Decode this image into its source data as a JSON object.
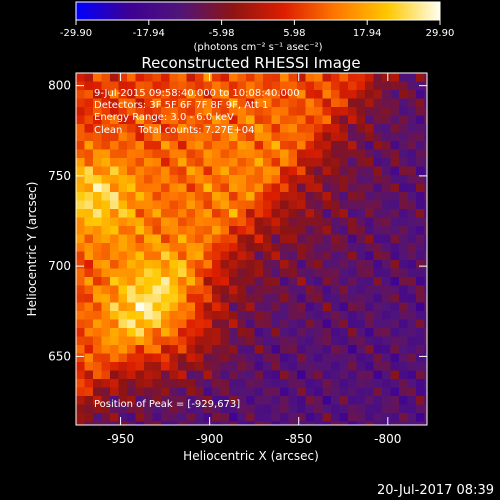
{
  "chart_data": {
    "type": "heatmap",
    "title": "Reconstructed RHESSI Image",
    "xlabel": "Heliocentric X (arcsec)",
    "ylabel": "Heliocentric Y (arcsec)",
    "xlim": [
      -975,
      -778
    ],
    "ylim": [
      612,
      807
    ],
    "xticks": [
      -950,
      -900,
      -850,
      -800
    ],
    "yticks": [
      650,
      700,
      750,
      800
    ],
    "colorbar": {
      "label": "(photons cm⁻² s⁻¹ asec⁻²)",
      "ticks": [
        -29.9,
        -17.94,
        -5.98,
        5.98,
        17.94,
        29.9
      ],
      "tick_labels": [
        "-29.90",
        "-17.94",
        "-5.98",
        "5.98",
        "17.94",
        "29.90"
      ],
      "range": [
        -29.9,
        29.9
      ],
      "colors": [
        "#0000ff",
        "#3c0096",
        "#50147a",
        "#8c1414",
        "#dc1e00",
        "#ff7800",
        "#ffc800",
        "#fffff0"
      ]
    },
    "annotations": [
      "9-Jul-2015 09:58:40.000 to 10:08:40.000",
      "Detectors: 3F 5F 6F 7F 8F 9F, Att 1",
      "Energy Range: 3.0 - 6.0 keV",
      "Clean     Total counts: 7.27E+04",
      "Position of Peak = [-929,673]"
    ],
    "peak": [
      -929,
      673
    ],
    "sources": [
      {
        "x": -929,
        "y": 673,
        "value": 29.9,
        "sigma": 24
      },
      {
        "x": -965,
        "y": 738,
        "value": 24,
        "sigma": 18
      },
      {
        "x": -880,
        "y": 750,
        "value": 12,
        "sigma": 45
      }
    ],
    "background_value": -13
  },
  "footer": {
    "timestamp": "20-Jul-2017 08:39"
  }
}
